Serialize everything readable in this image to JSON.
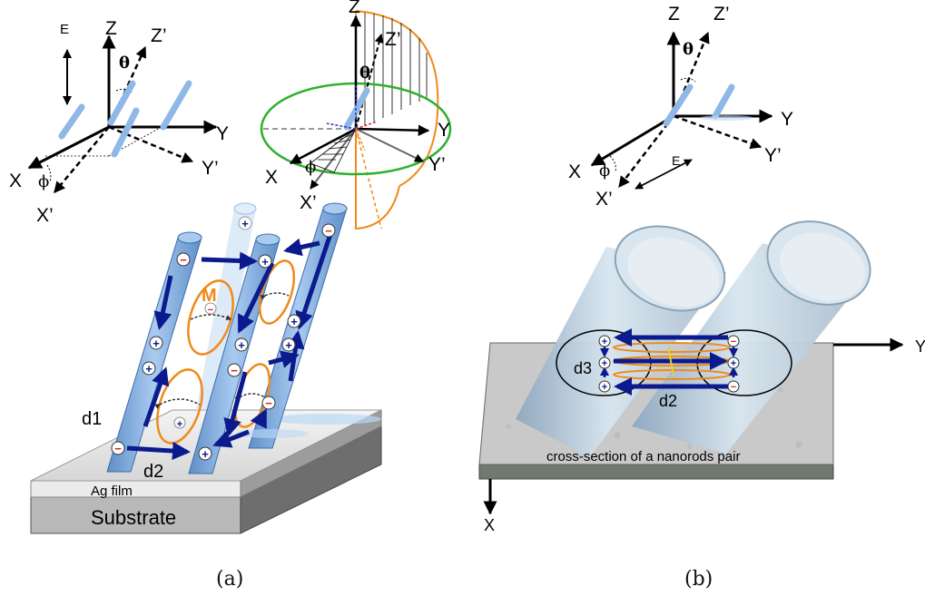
{
  "panel_a": {
    "caption": "(a)",
    "axes_left": {
      "e": "E",
      "z": "Z",
      "z_prime": "Z’",
      "theta": "θ",
      "y": "Y",
      "y_prime": "Y’",
      "x": "X",
      "x_prime": "X’",
      "phi": "ϕ"
    },
    "axes_right": {
      "z": "Z",
      "z_prime": "Z’",
      "theta": "θ",
      "y": "Y",
      "y_prime": "Y’",
      "x": "X",
      "x_prime": "X’",
      "phi": "ϕ"
    },
    "label_m": "M",
    "label_d1": "d1",
    "label_d2": "d2",
    "ag_film": "Ag film",
    "substrate": "Substrate",
    "plus": "+",
    "minus": "−"
  },
  "panel_b": {
    "caption": "(b)",
    "axes": {
      "z": "Z",
      "z_prime": "Z’",
      "theta": "θ",
      "y": "Y",
      "y_prime": "Y’",
      "x": "X",
      "x_prime": "X’",
      "phi": "ϕ",
      "e": "E"
    },
    "label_d3": "d3",
    "label_d2": "d2",
    "cross_section": "cross-section of a nanorods pair",
    "axis_y": "Y",
    "axis_x": "X"
  },
  "colors": {
    "rod_blue": "#8fb8e6",
    "arrow_navy": "#0b1a8c",
    "loop_orange": "#f08a1a",
    "circle_green": "#2fb02f",
    "minus_red": "#d42020",
    "substrate_gray": "#c7c7c7"
  }
}
